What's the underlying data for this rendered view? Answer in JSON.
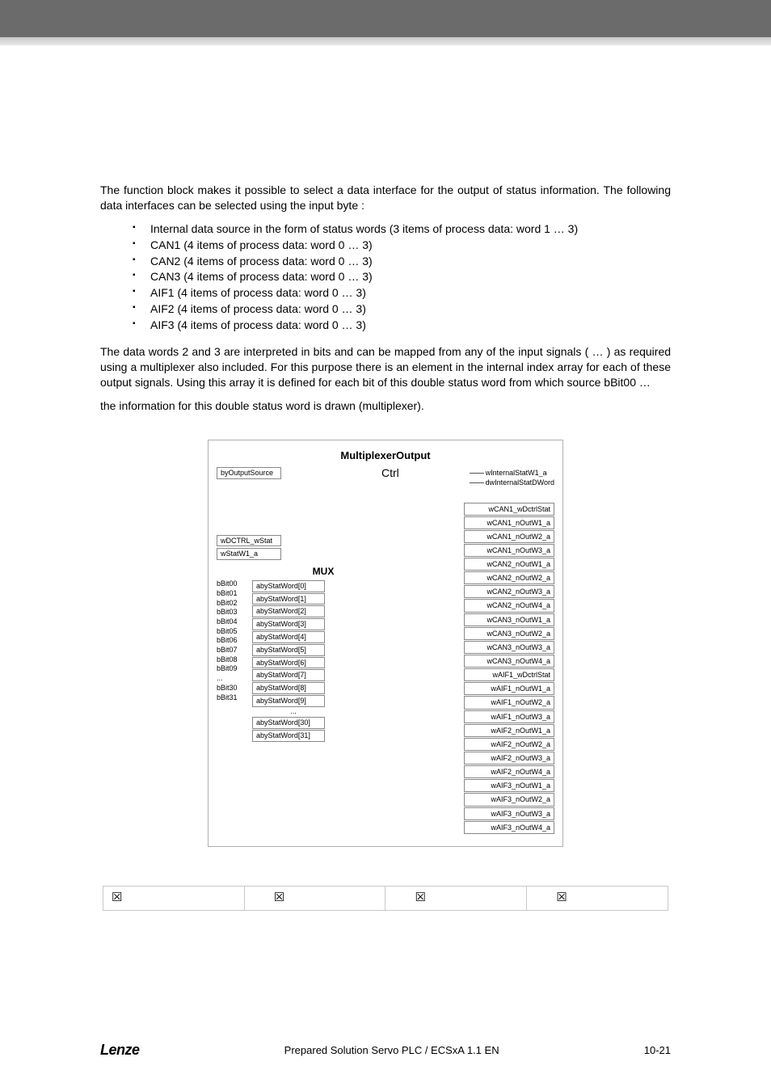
{
  "intro": {
    "p1_a": "The ",
    "p1_b": " function block makes it possible to select a data interface for the output of status information. The following data interfaces can be selected using the input byte ",
    "p1_c": ":"
  },
  "bullets": [
    "Internal data source in the form of status words (3 items of process data: word 1 … 3)",
    "CAN1 (4 items of process data: word 0 … 3)",
    "CAN2 (4 items of process data: word 0 … 3)",
    "CAN3 (4 items of process data: word 0 … 3)",
    "AIF1 (4 items of process data: word 0 … 3)",
    "AIF2 (4 items of process data: word 0 … 3)",
    "AIF3 (4 items of process data: word 0 … 3)"
  ],
  "para2": {
    "a": "The data words 2 and 3 are interpreted in bits and can be mapped from any of the input signals (",
    "b": " … ",
    "c": ") as required using a multiplexer also included. For this purpose there is an element in the internal index array ",
    "d": " for each of these output signals. Using this array it is defined for each bit of this double status word from which source bBit00 …",
    "e": "the information for this double status word is drawn (multiplexer)."
  },
  "diagram": {
    "title": "MultiplexerOutput",
    "byOutputSource": "byOutputSource",
    "ctrl": "Ctrl",
    "internal": [
      "wInternalStatW1_a",
      "dwInternalStatDWord"
    ],
    "wDCTRL": "wDCTRL_wStat",
    "wStatW1": "wStatW1_a",
    "mux": "MUX",
    "bits": [
      "bBit00",
      "bBit01",
      "bBit02",
      "bBit03",
      "bBit04",
      "bBit05",
      "bBit06",
      "bBit07",
      "bBit08",
      "bBit09",
      "...",
      "bBit30",
      "bBit31"
    ],
    "bitBoxes": [
      "abyStatWord[0]",
      "abyStatWord[1]",
      "abyStatWord[2]",
      "abyStatWord[3]",
      "abyStatWord[4]",
      "abyStatWord[5]",
      "abyStatWord[6]",
      "abyStatWord[7]",
      "abyStatWord[8]",
      "abyStatWord[9]",
      "...",
      "abyStatWord[30]",
      "abyStatWord[31]"
    ],
    "outputs": [
      "wCAN1_wDctrlStat",
      "wCAN1_nOutW1_a",
      "wCAN1_nOutW2_a",
      "wCAN1_nOutW3_a",
      "wCAN2_nOutW1_a",
      "wCAN2_nOutW2_a",
      "wCAN2_nOutW3_a",
      "wCAN2_nOutW4_a",
      "wCAN3_nOutW1_a",
      "wCAN3_nOutW2_a",
      "wCAN3_nOutW3_a",
      "wCAN3_nOutW4_a",
      "wAIF1_wDctrlStat",
      "wAIF1_nOutW1_a",
      "wAIF1_nOutW2_a",
      "wAIF1_nOutW3_a",
      "wAIF2_nOutW1_a",
      "wAIF2_nOutW2_a",
      "wAIF2_nOutW3_a",
      "wAIF2_nOutW4_a",
      "wAIF3_nOutW1_a",
      "wAIF3_nOutW2_a",
      "wAIF3_nOutW3_a",
      "wAIF3_nOutW4_a"
    ]
  },
  "checks": [
    "☒",
    "☒",
    "☒",
    "☒"
  ],
  "footer": {
    "brand": "Lenze",
    "center": "Prepared Solution Servo PLC / ECSxA 1.1 EN",
    "page": "10-21"
  }
}
